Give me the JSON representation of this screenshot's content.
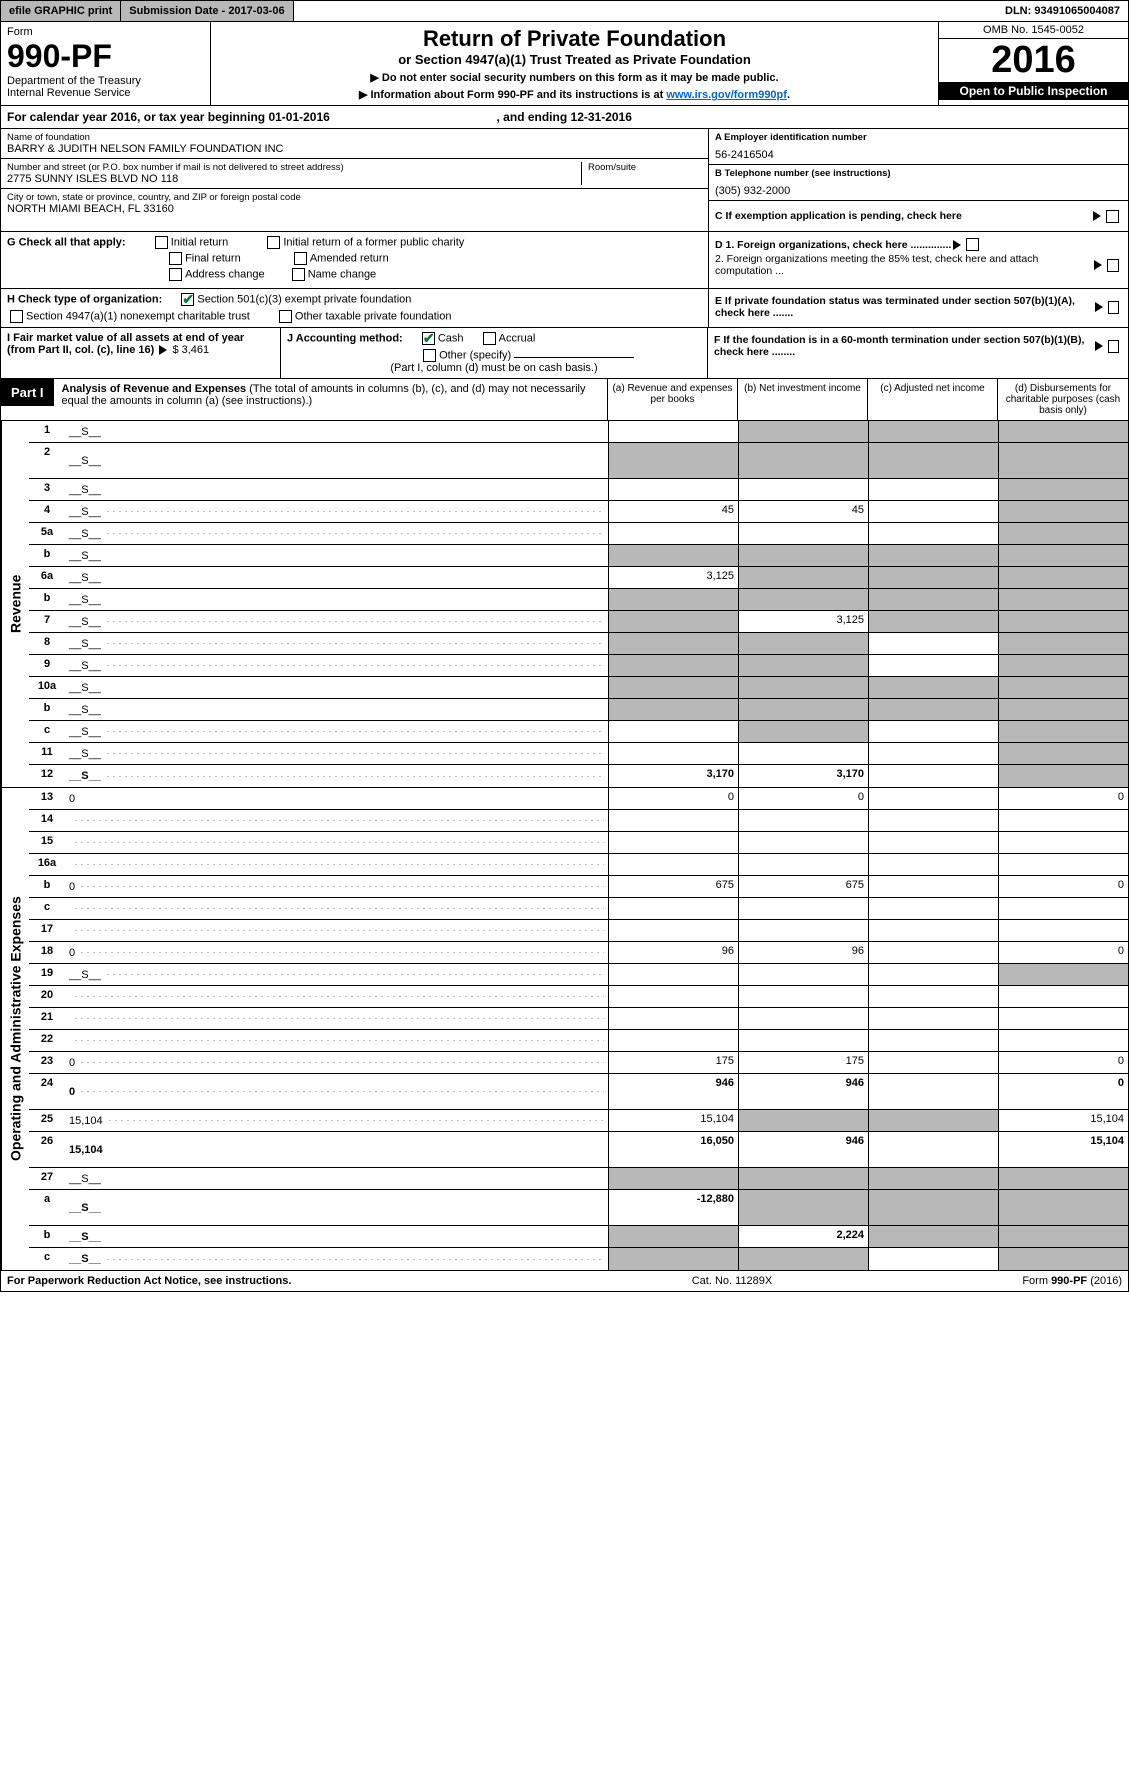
{
  "topbar": {
    "efile": "efile GRAPHIC print",
    "submission": "Submission Date - 2017-03-06",
    "dln": "DLN: 93491065004087"
  },
  "header": {
    "form_label": "Form",
    "form_no": "990-PF",
    "dept": "Department of the Treasury",
    "irs": "Internal Revenue Service",
    "title": "Return of Private Foundation",
    "subtitle": "or Section 4947(a)(1) Trust Treated as Private Foundation",
    "note1": "▶ Do not enter social security numbers on this form as it may be made public.",
    "note2_pre": "▶ Information about Form 990-PF and its instructions is at ",
    "note2_link": "www.irs.gov/form990pf",
    "note2_post": ".",
    "omb": "OMB No. 1545-0052",
    "year": "2016",
    "open": "Open to Public Inspection"
  },
  "cal_year": {
    "text_a": "For calendar year 2016, or tax year beginning 01-01-2016",
    "text_b": ", and ending 12-31-2016"
  },
  "entity": {
    "name_lbl": "Name of foundation",
    "name": "BARRY & JUDITH NELSON FAMILY FOUNDATION INC",
    "addr_lbl": "Number and street (or P.O. box number if mail is not delivered to street address)",
    "addr": "2775 SUNNY ISLES BLVD NO 118",
    "room_lbl": "Room/suite",
    "city_lbl": "City or town, state or province, country, and ZIP or foreign postal code",
    "city": "NORTH MIAMI BEACH, FL  33160",
    "ein_lbl": "A Employer identification number",
    "ein": "56-2416504",
    "tel_lbl": "B Telephone number (see instructions)",
    "tel": "(305) 932-2000",
    "c_lbl": "C If exemption application is pending, check here"
  },
  "g": {
    "label": "G Check all that apply:",
    "opts": [
      "Initial return",
      "Initial return of a former public charity",
      "Final return",
      "Amended return",
      "Address change",
      "Name change"
    ]
  },
  "d": {
    "d1": "D 1. Foreign organizations, check here ..............",
    "d2": "2. Foreign organizations meeting the 85% test, check here and attach computation ...",
    "e": "E  If private foundation status was terminated under section 507(b)(1)(A), check here .......",
    "f": "F  If the foundation is in a 60-month termination under section 507(b)(1)(B), check here ........"
  },
  "h": {
    "label": "H Check type of organization:",
    "o1": "Section 501(c)(3) exempt private foundation",
    "o2": "Section 4947(a)(1) nonexempt charitable trust",
    "o3": "Other taxable private foundation"
  },
  "i": {
    "label": "I Fair market value of all assets at end of year (from Part II, col. (c), line 16)",
    "value": "$  3,461"
  },
  "j": {
    "label": "J Accounting method:",
    "o1": "Cash",
    "o2": "Accrual",
    "o3": "Other (specify)",
    "note": "(Part I, column (d) must be on cash basis.)"
  },
  "part1": {
    "tab": "Part I",
    "title": "Analysis of Revenue and Expenses",
    "title_paren": "(The total of amounts in columns (b), (c), and (d) may not necessarily equal the amounts in column (a) (see instructions).)",
    "col_a": "(a)   Revenue and expenses per books",
    "col_b": "(b)   Net investment income",
    "col_c": "(c)   Adjusted net income",
    "col_d": "(d)   Disbursements for charitable purposes (cash basis only)"
  },
  "sections": {
    "revenue": "Revenue",
    "expenses": "Operating and Administrative Expenses"
  },
  "rows": [
    {
      "n": "1",
      "d": "__S__",
      "a": "",
      "b": "__S__",
      "c": "__S__"
    },
    {
      "n": "2",
      "d": "__S__",
      "a": "__S__",
      "b": "__S__",
      "c": "__S__",
      "tall": true,
      "bold_words": "not"
    },
    {
      "n": "3",
      "d": "__S__",
      "a": "",
      "b": "",
      "c": ""
    },
    {
      "n": "4",
      "d": "__S__",
      "a": "45",
      "b": "45",
      "c": "",
      "dots": true
    },
    {
      "n": "5a",
      "d": "__S__",
      "a": "",
      "b": "",
      "c": "",
      "dots": true
    },
    {
      "n": "b",
      "d": "__S__",
      "a": "__S__",
      "b": "__S__",
      "c": "__S__"
    },
    {
      "n": "6a",
      "d": "__S__",
      "a": "3,125",
      "b": "__S__",
      "c": "__S__"
    },
    {
      "n": "b",
      "d": "__S__",
      "a": "__S__",
      "b": "__S__",
      "c": "__S__"
    },
    {
      "n": "7",
      "d": "__S__",
      "a": "__S__",
      "b": "3,125",
      "c": "__S__",
      "dots": true
    },
    {
      "n": "8",
      "d": "__S__",
      "a": "__S__",
      "b": "__S__",
      "c": "",
      "dots": true
    },
    {
      "n": "9",
      "d": "__S__",
      "a": "__S__",
      "b": "__S__",
      "c": "",
      "dots": true
    },
    {
      "n": "10a",
      "d": "__S__",
      "a": "__S__",
      "b": "__S__",
      "c": "__S__"
    },
    {
      "n": "b",
      "d": "__S__",
      "a": "__S__",
      "b": "__S__",
      "c": "__S__"
    },
    {
      "n": "c",
      "d": "__S__",
      "a": "",
      "b": "__S__",
      "c": "",
      "dots": true
    },
    {
      "n": "11",
      "d": "__S__",
      "a": "",
      "b": "",
      "c": "",
      "dots": true
    },
    {
      "n": "12",
      "d": "__S__",
      "a": "3,170",
      "b": "3,170",
      "c": "",
      "bold": true,
      "dots": true
    }
  ],
  "rows2": [
    {
      "n": "13",
      "d": "0",
      "a": "0",
      "b": "0",
      "c": ""
    },
    {
      "n": "14",
      "d": "",
      "a": "",
      "b": "",
      "c": "",
      "dots": true
    },
    {
      "n": "15",
      "d": "",
      "a": "",
      "b": "",
      "c": "",
      "dots": true
    },
    {
      "n": "16a",
      "d": "",
      "a": "",
      "b": "",
      "c": "",
      "dots": true
    },
    {
      "n": "b",
      "d": "0",
      "a": "675",
      "b": "675",
      "c": "",
      "dots": true
    },
    {
      "n": "c",
      "d": "",
      "a": "",
      "b": "",
      "c": "",
      "dots": true
    },
    {
      "n": "17",
      "d": "",
      "a": "",
      "b": "",
      "c": "",
      "dots": true
    },
    {
      "n": "18",
      "d": "0",
      "a": "96",
      "b": "96",
      "c": "",
      "dots": true
    },
    {
      "n": "19",
      "d": "__S__",
      "a": "",
      "b": "",
      "c": "",
      "dots": true
    },
    {
      "n": "20",
      "d": "",
      "a": "",
      "b": "",
      "c": "",
      "dots": true
    },
    {
      "n": "21",
      "d": "",
      "a": "",
      "b": "",
      "c": "",
      "dots": true
    },
    {
      "n": "22",
      "d": "",
      "a": "",
      "b": "",
      "c": "",
      "dots": true
    },
    {
      "n": "23",
      "d": "0",
      "a": "175",
      "b": "175",
      "c": "",
      "dots": true
    },
    {
      "n": "24",
      "d": "0",
      "a": "946",
      "b": "946",
      "c": "",
      "bold": true,
      "dots": true,
      "tall": true
    },
    {
      "n": "25",
      "d": "15,104",
      "a": "15,104",
      "b": "__S__",
      "c": "__S__",
      "dots": true
    },
    {
      "n": "26",
      "d": "15,104",
      "a": "16,050",
      "b": "946",
      "c": "",
      "bold": true,
      "tall": true
    },
    {
      "n": "27",
      "d": "__S__",
      "a": "__S__",
      "b": "__S__",
      "c": "__S__"
    },
    {
      "n": "a",
      "d": "__S__",
      "a": "-12,880",
      "b": "__S__",
      "c": "__S__",
      "bold": true,
      "tall": true
    },
    {
      "n": "b",
      "d": "__S__",
      "a": "__S__",
      "b": "2,224",
      "c": "__S__",
      "bold": true
    },
    {
      "n": "c",
      "d": "__S__",
      "a": "__S__",
      "b": "__S__",
      "c": "",
      "bold": true,
      "dots": true
    }
  ],
  "footer": {
    "left": "For Paperwork Reduction Act Notice, see instructions.",
    "center": "Cat. No. 11289X",
    "right": "Form 990-PF (2016)"
  }
}
